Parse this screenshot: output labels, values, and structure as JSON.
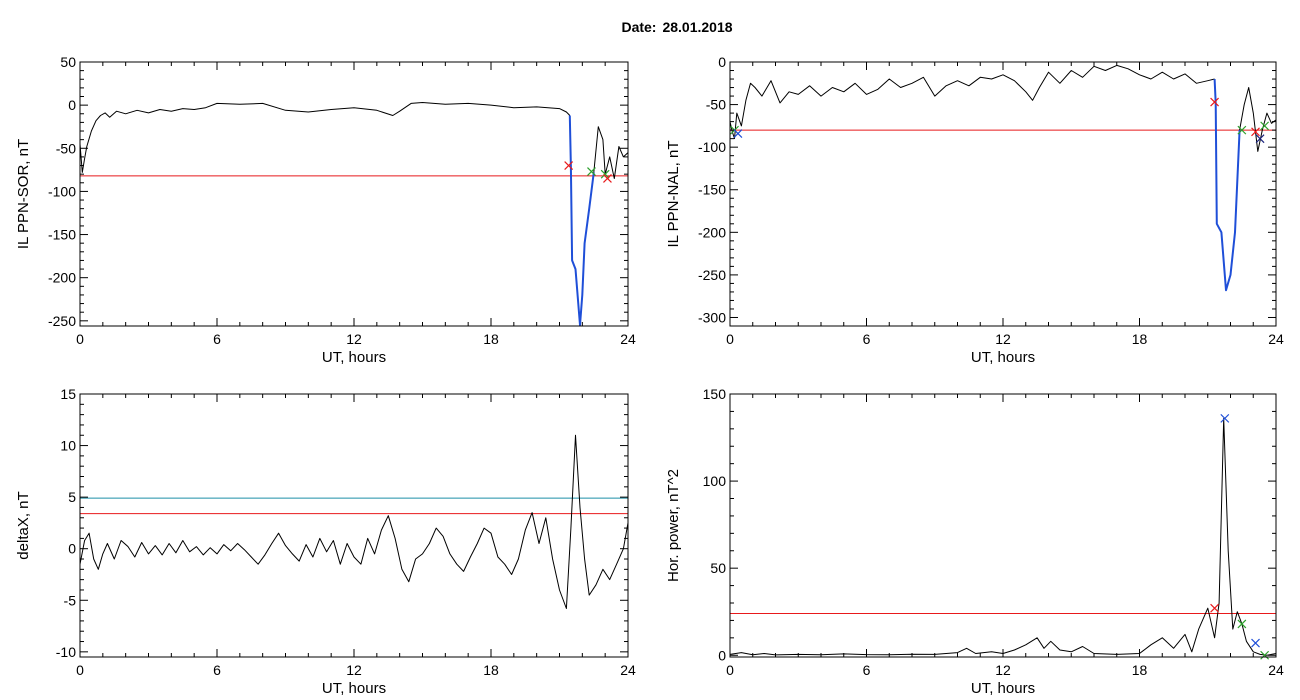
{
  "header": {
    "date_label": "Date:",
    "date_value": "28.01.2018"
  },
  "colors": {
    "signal": "#000000",
    "highlight": "#1f4fd8",
    "threshold": "#e8191b",
    "threshold2": "#1c8fa8",
    "marker_red": "#e8191b",
    "marker_green": "#2ca02c",
    "marker_blue": "#1f4fd8",
    "marker_navy": "#1a237e"
  },
  "chart_data": [
    {
      "type": "line",
      "ylabel": "IL PPN-SOR, nT",
      "xlabel": "UT, hours",
      "xlim": [
        0,
        24
      ],
      "ylim": [
        -256,
        50
      ],
      "xticks": [
        0,
        6,
        12,
        18,
        24
      ],
      "yticks": [
        50,
        0,
        -50,
        -100,
        -150,
        -200,
        -250
      ],
      "thresholds": [
        {
          "y": -82,
          "color": "#e8191b"
        }
      ],
      "series": [
        {
          "color": "#000000",
          "x": [
            0,
            0.1,
            0.2,
            0.3,
            0.5,
            0.7,
            0.9,
            1.1,
            1.3,
            1.6,
            2.0,
            2.5,
            3.0,
            3.5,
            4.0,
            4.5,
            5.0,
            5.5,
            6.0,
            7.0,
            8.0,
            9.0,
            10.0,
            11.0,
            12.0,
            13.0,
            13.7,
            14.0,
            14.5,
            15.0,
            16.0,
            17.0,
            18.0,
            19.0,
            20.0,
            21.0,
            21.3,
            21.45
          ],
          "y": [
            -45,
            -78,
            -62,
            -48,
            -30,
            -18,
            -12,
            -9,
            -14,
            -7,
            -10,
            -6,
            -9,
            -5,
            -7,
            -4,
            -5,
            -3,
            2,
            1,
            2,
            -6,
            -8,
            -5,
            -3,
            -6,
            -12,
            -7,
            2,
            3,
            1,
            2,
            0,
            -3,
            -2,
            -4,
            -8,
            -12
          ]
        },
        {
          "color": "#1f4fd8",
          "x": [
            21.45,
            21.5,
            21.55,
            21.7,
            21.9,
            22.0,
            22.1,
            22.3,
            22.5
          ],
          "y": [
            -12,
            -72,
            -180,
            -190,
            -255,
            -220,
            -160,
            -120,
            -78
          ]
        },
        {
          "color": "#000000",
          "x": [
            22.5,
            22.7,
            22.9,
            23.0,
            23.2,
            23.4,
            23.6,
            23.8,
            24.0
          ],
          "y": [
            -78,
            -25,
            -40,
            -80,
            -60,
            -85,
            -48,
            -60,
            -55
          ]
        }
      ],
      "markers": [
        {
          "x": 21.4,
          "y": -70,
          "color": "#e8191b"
        },
        {
          "x": 22.4,
          "y": -77,
          "color": "#2ca02c"
        },
        {
          "x": 23.0,
          "y": -80,
          "color": "#2ca02c"
        },
        {
          "x": 23.1,
          "y": -85,
          "color": "#e8191b"
        }
      ]
    },
    {
      "type": "line",
      "ylabel": "IL PPN-NAL, nT",
      "xlabel": "UT, hours",
      "xlim": [
        0,
        24
      ],
      "ylim": [
        -310,
        0
      ],
      "xticks": [
        0,
        6,
        12,
        18,
        24
      ],
      "yticks": [
        0,
        -50,
        -100,
        -150,
        -200,
        -250,
        -300
      ],
      "thresholds": [
        {
          "y": -80,
          "color": "#e8191b"
        }
      ],
      "series": [
        {
          "color": "#000000",
          "x": [
            0,
            0.1,
            0.2,
            0.3,
            0.5,
            0.7,
            0.9,
            1.1,
            1.4,
            1.8,
            2.2,
            2.6,
            3.0,
            3.5,
            4.0,
            4.5,
            5.0,
            5.5,
            6.0,
            6.5,
            7.0,
            7.5,
            8.0,
            8.5,
            9.0,
            9.5,
            10.0,
            10.5,
            11.0,
            11.5,
            12.0,
            12.5,
            13.0,
            13.3,
            13.6,
            14.0,
            14.5,
            15.0,
            15.5,
            16.0,
            16.5,
            17.0,
            17.5,
            18.0,
            18.5,
            19.0,
            19.5,
            20.0,
            20.5,
            21.0,
            21.3
          ],
          "y": [
            -70,
            -82,
            -90,
            -60,
            -75,
            -45,
            -25,
            -30,
            -40,
            -22,
            -48,
            -35,
            -38,
            -28,
            -40,
            -30,
            -35,
            -25,
            -38,
            -32,
            -20,
            -30,
            -25,
            -18,
            -40,
            -28,
            -22,
            -28,
            -18,
            -20,
            -15,
            -22,
            -35,
            -45,
            -30,
            -12,
            -25,
            -10,
            -18,
            -5,
            -10,
            -4,
            -8,
            -15,
            -20,
            -12,
            -20,
            -14,
            -25,
            -22,
            -20
          ]
        },
        {
          "color": "#1f4fd8",
          "x": [
            21.3,
            21.35,
            21.4,
            21.6,
            21.8,
            22.0,
            22.2,
            22.4
          ],
          "y": [
            -20,
            -48,
            -190,
            -200,
            -268,
            -250,
            -200,
            -80
          ]
        },
        {
          "color": "#000000",
          "x": [
            22.4,
            22.6,
            22.8,
            23.0,
            23.2,
            23.4,
            23.6,
            23.8,
            24.0
          ],
          "y": [
            -80,
            -50,
            -30,
            -60,
            -105,
            -80,
            -60,
            -72,
            -68
          ]
        }
      ],
      "markers": [
        {
          "x": 0.2,
          "y": -80,
          "color": "#2ca02c"
        },
        {
          "x": 0.35,
          "y": -84,
          "color": "#1f4fd8"
        },
        {
          "x": 21.3,
          "y": -47,
          "color": "#e8191b"
        },
        {
          "x": 22.5,
          "y": -80,
          "color": "#2ca02c"
        },
        {
          "x": 23.1,
          "y": -82,
          "color": "#e8191b"
        },
        {
          "x": 23.3,
          "y": -90,
          "color": "#1a237e"
        },
        {
          "x": 23.5,
          "y": -75,
          "color": "#2ca02c"
        }
      ]
    },
    {
      "type": "line",
      "ylabel": "deltaX, nT",
      "xlabel": "UT, hours",
      "xlim": [
        0,
        24
      ],
      "ylim": [
        -10.5,
        15
      ],
      "xticks": [
        0,
        6,
        12,
        18,
        24
      ],
      "yticks": [
        15,
        10,
        5,
        0,
        -5,
        -10
      ],
      "thresholds": [
        {
          "y": 4.9,
          "color": "#1c8fa8"
        },
        {
          "y": 3.4,
          "color": "#e8191b"
        }
      ],
      "series": [
        {
          "color": "#000000",
          "x": [
            0,
            0.2,
            0.4,
            0.6,
            0.8,
            1.0,
            1.2,
            1.5,
            1.8,
            2.1,
            2.4,
            2.7,
            3.0,
            3.3,
            3.6,
            3.9,
            4.2,
            4.5,
            4.8,
            5.1,
            5.4,
            5.7,
            6.0,
            6.3,
            6.6,
            6.9,
            7.2,
            7.5,
            7.8,
            8.1,
            8.4,
            8.7,
            9.0,
            9.3,
            9.6,
            9.9,
            10.2,
            10.5,
            10.8,
            11.1,
            11.4,
            11.7,
            12.0,
            12.3,
            12.6,
            12.9,
            13.2,
            13.5,
            13.8,
            14.1,
            14.4,
            14.7,
            15.0,
            15.3,
            15.6,
            15.9,
            16.2,
            16.5,
            16.8,
            17.1,
            17.4,
            17.7,
            18.0,
            18.3,
            18.6,
            18.9,
            19.2,
            19.5,
            19.8,
            20.1,
            20.4,
            20.7,
            21.0,
            21.3,
            21.5,
            21.7,
            21.9,
            22.1,
            22.3,
            22.6,
            22.9,
            23.2,
            23.5,
            23.8,
            24.0
          ],
          "y": [
            -1.5,
            0.8,
            1.5,
            -1.0,
            -2.0,
            -0.5,
            0.5,
            -1.0,
            0.8,
            0.2,
            -0.8,
            0.6,
            -0.5,
            0.3,
            -0.6,
            0.5,
            -0.4,
            0.8,
            -0.3,
            0.2,
            -0.6,
            0.1,
            -0.5,
            0.4,
            -0.2,
            0.5,
            -0.1,
            -0.8,
            -1.5,
            -0.6,
            0.5,
            1.5,
            0.3,
            -0.5,
            -1.2,
            0.4,
            -0.8,
            1.0,
            -0.3,
            0.8,
            -1.5,
            0.5,
            -0.8,
            -1.5,
            1.0,
            -0.5,
            1.8,
            3.2,
            1.0,
            -2.0,
            -3.2,
            -1.0,
            -0.5,
            0.5,
            2.0,
            1.2,
            -0.5,
            -1.5,
            -2.2,
            -0.8,
            0.5,
            2.0,
            1.5,
            -0.8,
            -1.5,
            -2.5,
            -1.0,
            1.8,
            3.5,
            0.5,
            3.0,
            -1.0,
            -4.0,
            -5.8,
            2.0,
            11.0,
            4.0,
            -1.0,
            -4.5,
            -3.5,
            -2.0,
            -3.0,
            -1.5,
            0.0,
            2.5
          ]
        }
      ],
      "markers": []
    },
    {
      "type": "line",
      "ylabel": "Hor. power, nT^2",
      "xlabel": "UT, hours",
      "xlim": [
        0,
        24
      ],
      "ylim": [
        -1,
        150
      ],
      "xticks": [
        0,
        6,
        12,
        18,
        24
      ],
      "yticks": [
        150,
        100,
        50,
        0
      ],
      "thresholds": [
        {
          "y": 24,
          "color": "#e8191b"
        }
      ],
      "series": [
        {
          "color": "#000000",
          "x": [
            0,
            0.5,
            1.0,
            1.5,
            2.0,
            3.0,
            4.0,
            5.0,
            6.0,
            7.0,
            8.0,
            9.0,
            10.0,
            10.4,
            10.8,
            11.5,
            12.0,
            12.5,
            13.0,
            13.5,
            13.8,
            14.1,
            14.5,
            15.0,
            15.5,
            16.0,
            17.0,
            18.0,
            18.5,
            19.0,
            19.5,
            20.0,
            20.3,
            20.6,
            21.0,
            21.3,
            21.5,
            21.7,
            21.9,
            22.1,
            22.3,
            22.5,
            22.7,
            23.0,
            23.3,
            23.6,
            24.0
          ],
          "y": [
            0.5,
            1.5,
            0.3,
            1.0,
            0.2,
            0.5,
            0.3,
            0.8,
            0.4,
            0.3,
            0.6,
            0.5,
            1.5,
            4.0,
            1.0,
            2.0,
            1.0,
            3.0,
            6.0,
            10.0,
            4.0,
            8.0,
            3.0,
            2.0,
            5.0,
            1.0,
            0.5,
            1.0,
            6.0,
            10.0,
            4.0,
            12.0,
            2.0,
            15.0,
            27.0,
            10.0,
            30.0,
            136.0,
            60.0,
            15.0,
            25.0,
            18.0,
            8.0,
            2.0,
            0.5,
            0.0,
            1.0
          ]
        }
      ],
      "markers": [
        {
          "x": 21.3,
          "y": 27,
          "color": "#e8191b"
        },
        {
          "x": 21.75,
          "y": 136,
          "color": "#1f4fd8"
        },
        {
          "x": 22.5,
          "y": 18,
          "color": "#2ca02c"
        },
        {
          "x": 23.1,
          "y": 7,
          "color": "#1f4fd8"
        },
        {
          "x": 23.5,
          "y": 0,
          "color": "#2ca02c"
        }
      ]
    }
  ]
}
